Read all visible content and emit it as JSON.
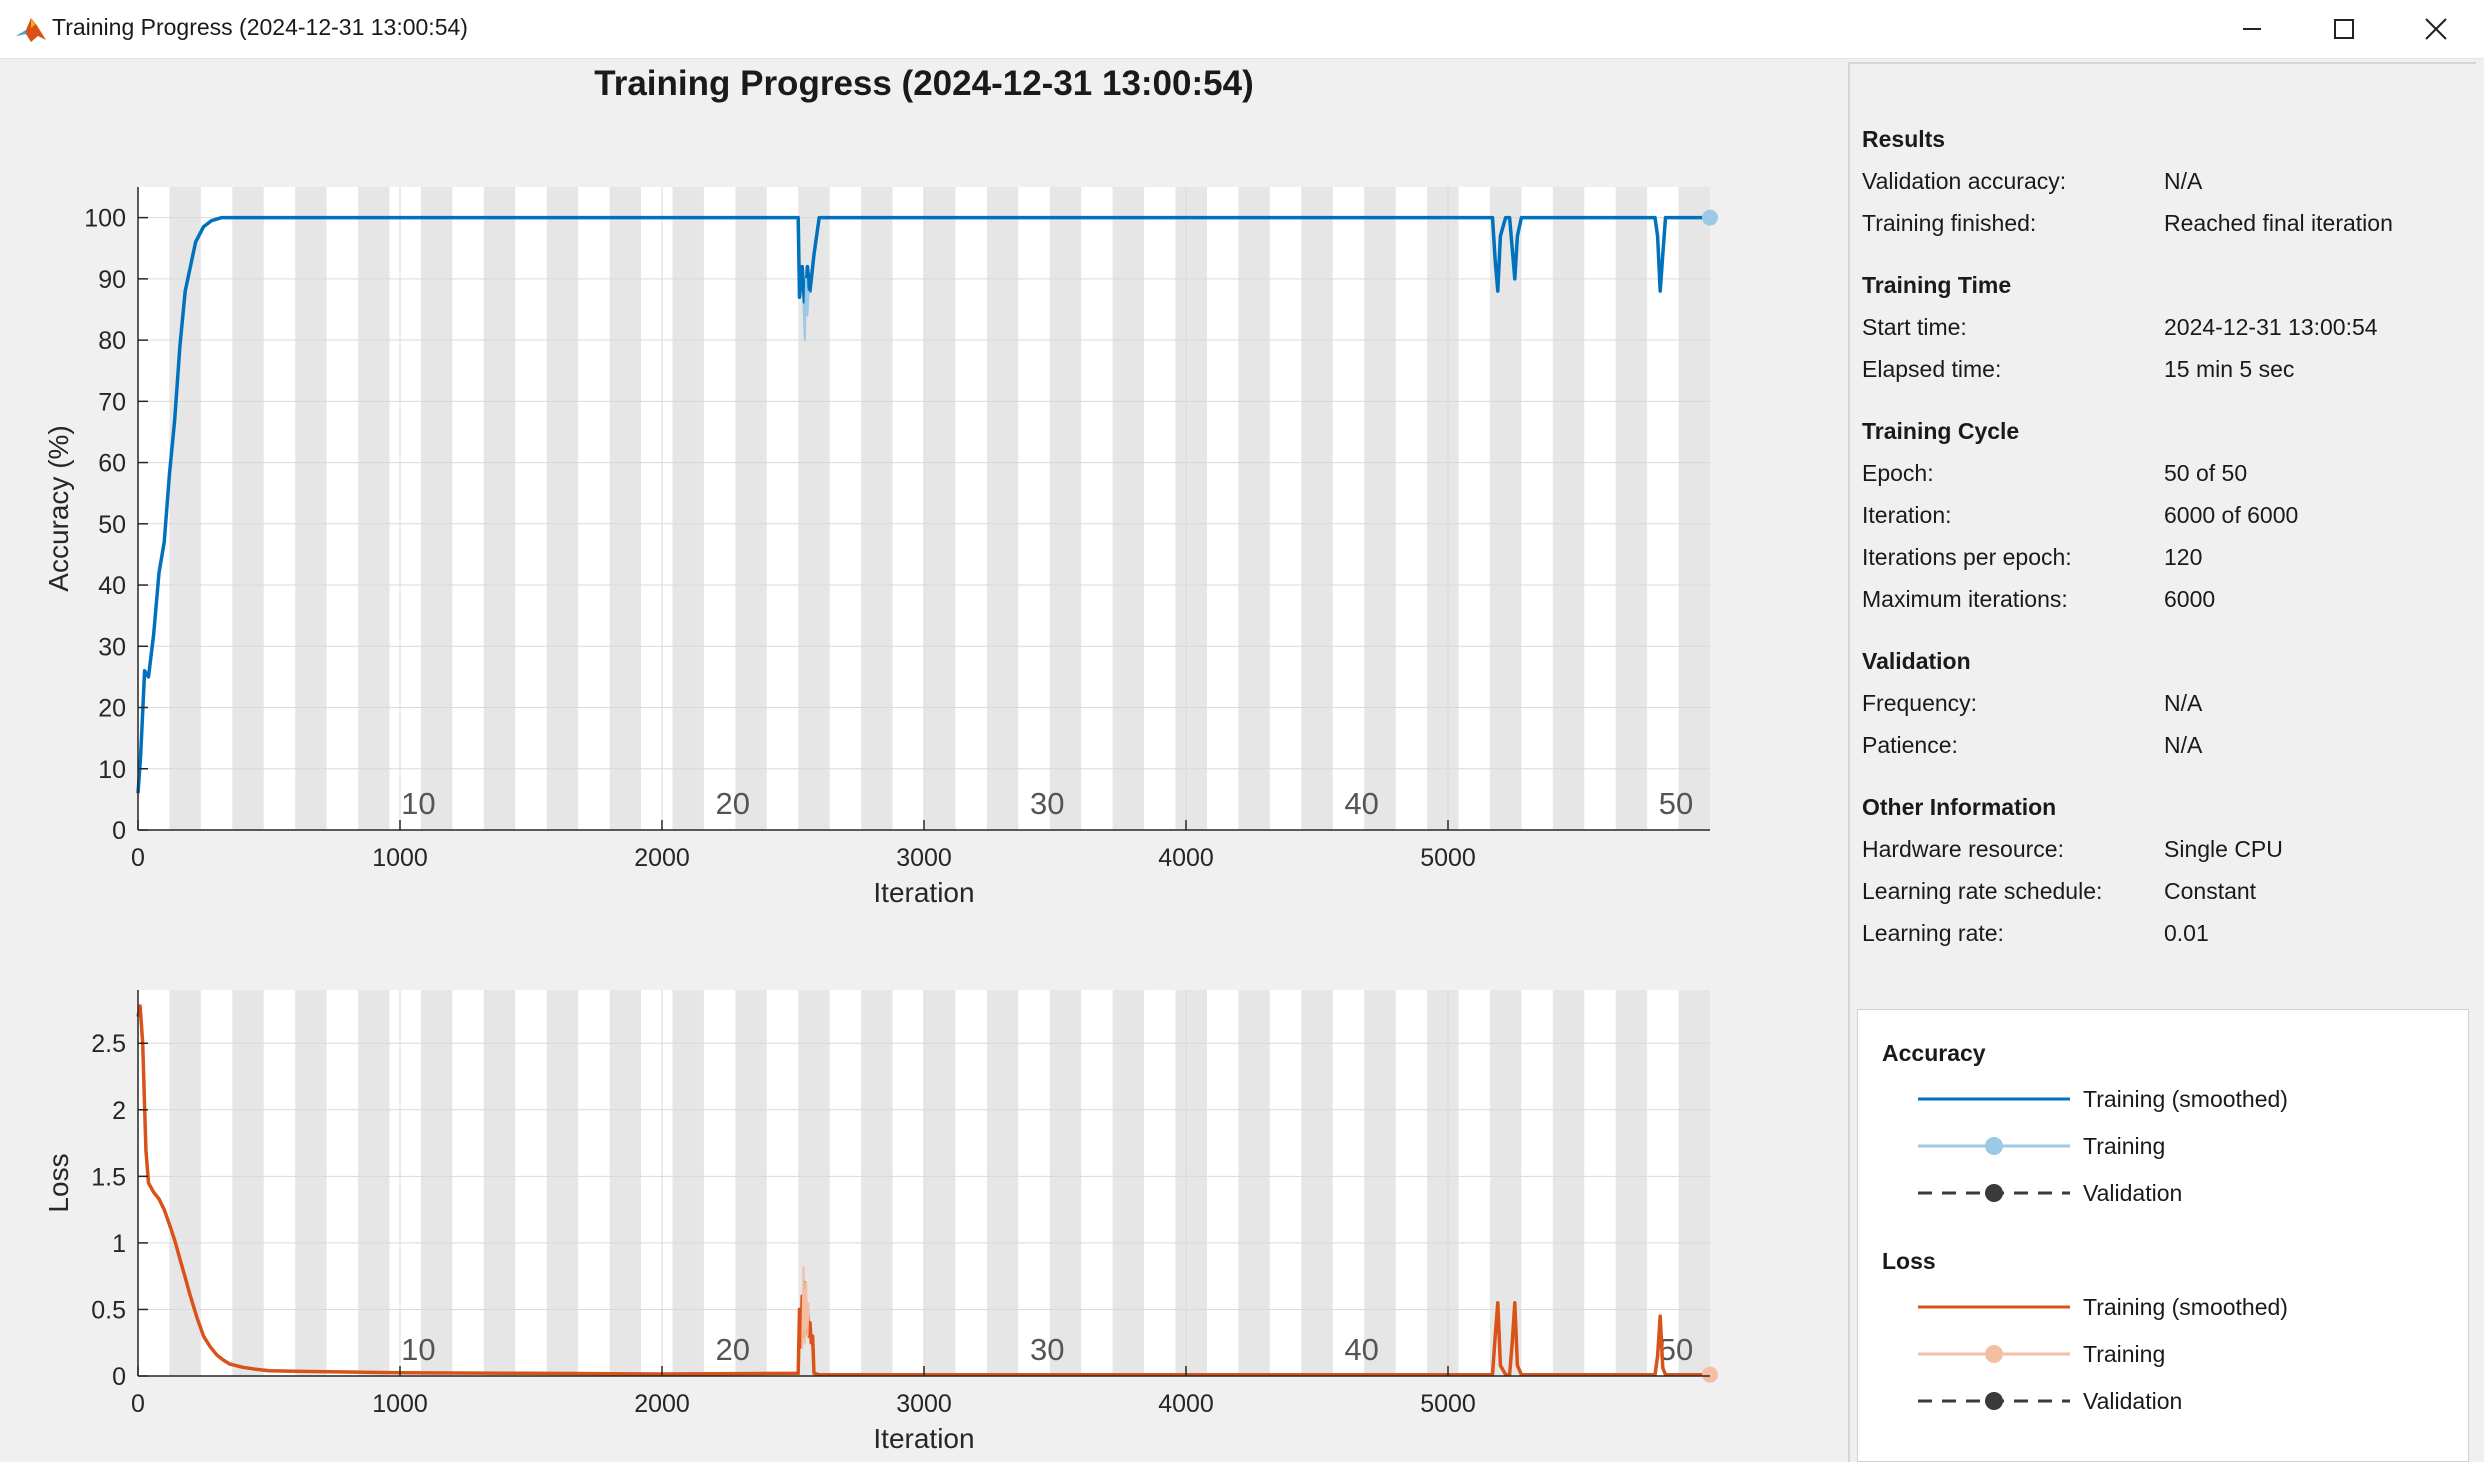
{
  "window": {
    "title": "Training Progress (2024-12-31 13:00:54)",
    "controls": [
      "minimize-icon",
      "maximize-icon",
      "close-icon"
    ]
  },
  "figure": {
    "title": "Training Progress (2024-12-31 13:00:54)"
  },
  "chart_data": [
    {
      "type": "line",
      "ylabel": "Accuracy (%)",
      "xlabel": "Iteration",
      "xlim": [
        0,
        6000
      ],
      "ylim": [
        0,
        105
      ],
      "xticks": [
        0,
        1000,
        2000,
        3000,
        4000,
        5000
      ],
      "yticks": [
        0,
        10,
        20,
        30,
        40,
        50,
        60,
        70,
        80,
        90,
        100
      ],
      "grid": true,
      "epoch_labels": [
        "10",
        "20",
        "30",
        "40",
        "50"
      ],
      "epoch_shading": {
        "iterations_per_epoch": 120,
        "epochs": 50
      },
      "series": [
        {
          "name": "Training (smoothed)",
          "color": "#0072bd",
          "x": [
            0,
            10,
            25,
            40,
            60,
            80,
            100,
            120,
            140,
            160,
            180,
            200,
            220,
            250,
            280,
            320,
            360,
            2520,
            2525,
            2535,
            2545,
            2555,
            2565,
            2580,
            2600,
            2620,
            5170,
            5180,
            5190,
            5200,
            5220,
            5235,
            5245,
            5255,
            5265,
            5280,
            5790,
            5800,
            5810,
            5820,
            5830,
            5860,
            6000
          ],
          "values": [
            6,
            12,
            26,
            25,
            32,
            42,
            47,
            58,
            67,
            79,
            88,
            92,
            96,
            98.5,
            99.5,
            100,
            100,
            100,
            87,
            92,
            85,
            92,
            88,
            94,
            100,
            100,
            100,
            93,
            88,
            97,
            100,
            100,
            95,
            90,
            97,
            100,
            100,
            97,
            88,
            94,
            100,
            100,
            100
          ]
        },
        {
          "name": "Training",
          "color": "#9cc9e6",
          "x": [
            2540,
            2545,
            2550,
            2555,
            2560
          ],
          "values": [
            86,
            80,
            90,
            84,
            88
          ]
        }
      ]
    },
    {
      "type": "line",
      "ylabel": "Loss",
      "xlabel": "Iteration",
      "xlim": [
        0,
        6000
      ],
      "ylim": [
        0,
        2.9
      ],
      "xticks": [
        0,
        1000,
        2000,
        3000,
        4000,
        5000
      ],
      "yticks": [
        0,
        0.5,
        1,
        1.5,
        2,
        2.5
      ],
      "grid": true,
      "epoch_labels": [
        "10",
        "20",
        "30",
        "40",
        "50"
      ],
      "epoch_shading": {
        "iterations_per_epoch": 120,
        "epochs": 50
      },
      "series": [
        {
          "name": "Training (smoothed)",
          "color": "#d95319",
          "x": [
            0,
            8,
            18,
            30,
            40,
            60,
            80,
            100,
            120,
            140,
            160,
            180,
            200,
            225,
            250,
            275,
            300,
            325,
            350,
            400,
            450,
            500,
            600,
            800,
            1000,
            1500,
            2000,
            2520,
            2525,
            2530,
            2535,
            2540,
            2545,
            2550,
            2555,
            2560,
            2565,
            2570,
            2575,
            2580,
            2600,
            5170,
            5180,
            5190,
            5200,
            5220,
            5235,
            5245,
            5255,
            5265,
            5280,
            5790,
            5800,
            5810,
            5820,
            5830,
            5860,
            6000
          ],
          "values": [
            2.7,
            2.78,
            2.5,
            1.7,
            1.45,
            1.38,
            1.33,
            1.25,
            1.14,
            1.02,
            0.88,
            0.74,
            0.6,
            0.44,
            0.3,
            0.22,
            0.16,
            0.12,
            0.09,
            0.065,
            0.05,
            0.04,
            0.035,
            0.03,
            0.025,
            0.02,
            0.015,
            0.02,
            0.5,
            0.22,
            0.6,
            0.3,
            0.7,
            0.32,
            0.5,
            0.3,
            0.4,
            0.25,
            0.3,
            0.02,
            0.01,
            0.01,
            0.3,
            0.55,
            0.08,
            0.01,
            0.01,
            0.25,
            0.55,
            0.08,
            0.01,
            0.01,
            0.15,
            0.45,
            0.06,
            0.01,
            0.01,
            0.01
          ]
        },
        {
          "name": "Training",
          "color": "#f4bea3",
          "x": [
            2535,
            2540,
            2545,
            2550,
            2555,
            2560
          ],
          "values": [
            0.2,
            0.82,
            0.25,
            0.7,
            0.3,
            0.55
          ]
        }
      ]
    }
  ],
  "results": {
    "sections": [
      {
        "title": "Results",
        "rows": [
          {
            "label": "Validation accuracy:",
            "value": "N/A"
          },
          {
            "label": "Training finished:",
            "value": "Reached final iteration"
          }
        ]
      },
      {
        "title": "Training Time",
        "rows": [
          {
            "label": "Start time:",
            "value": "2024-12-31 13:00:54"
          },
          {
            "label": "Elapsed time:",
            "value": "15 min 5 sec"
          }
        ]
      },
      {
        "title": "Training Cycle",
        "rows": [
          {
            "label": "Epoch:",
            "value": "50 of 50"
          },
          {
            "label": "Iteration:",
            "value": "6000 of 6000"
          },
          {
            "label": "Iterations per epoch:",
            "value": "120"
          },
          {
            "label": "Maximum iterations:",
            "value": "6000"
          }
        ]
      },
      {
        "title": "Validation",
        "rows": [
          {
            "label": "Frequency:",
            "value": "N/A"
          },
          {
            "label": "Patience:",
            "value": "N/A"
          }
        ]
      },
      {
        "title": "Other Information",
        "rows": [
          {
            "label": "Hardware resource:",
            "value": "Single CPU"
          },
          {
            "label": "Learning rate schedule:",
            "value": "Constant"
          },
          {
            "label": "Learning rate:",
            "value": "0.01"
          }
        ]
      }
    ]
  },
  "legend": {
    "accuracy_title": "Accuracy",
    "loss_title": "Loss",
    "accuracy_items": [
      {
        "label": "Training (smoothed)",
        "color": "#0072bd",
        "style": "solid",
        "marker": false
      },
      {
        "label": "Training",
        "color": "#9cc9e6",
        "style": "solid",
        "marker": true
      },
      {
        "label": "Validation",
        "color": "#3a3a3a",
        "style": "dashed",
        "marker": true
      }
    ],
    "loss_items": [
      {
        "label": "Training (smoothed)",
        "color": "#d95319",
        "style": "solid",
        "marker": false
      },
      {
        "label": "Training",
        "color": "#f4bea3",
        "style": "solid",
        "marker": true
      },
      {
        "label": "Validation",
        "color": "#3a3a3a",
        "style": "dashed",
        "marker": true
      }
    ]
  }
}
